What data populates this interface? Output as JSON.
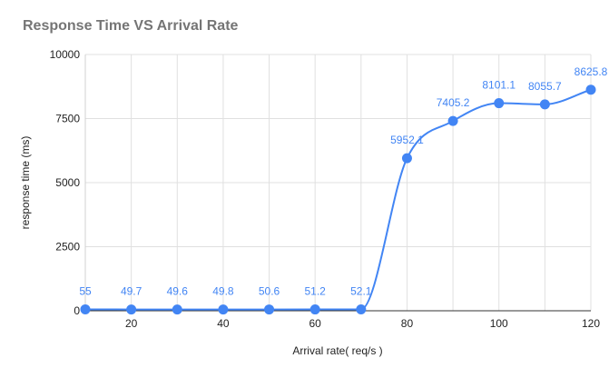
{
  "chart_data": {
    "type": "line",
    "title": "Response Time VS Arrival Rate",
    "xlabel": "Arrival rate( req/s )",
    "ylabel": "response time (ms)",
    "x": [
      10,
      20,
      30,
      40,
      50,
      60,
      70,
      80,
      90,
      100,
      110,
      120
    ],
    "series": [
      {
        "values": [
          55,
          49.7,
          49.6,
          49.8,
          50.6,
          51.2,
          52.1,
          5952.1,
          7405.2,
          8101.1,
          8055.7,
          8625.8
        ],
        "data_labels": [
          "55",
          "49.7",
          "49.6",
          "49.8",
          "50.6",
          "51.2",
          "52.1",
          "5952.1",
          "7405.2",
          "8101.1",
          "8055.7",
          "8625.8"
        ],
        "color": "#4285f4"
      }
    ],
    "xlim": [
      10,
      120
    ],
    "ylim": [
      0,
      10000
    ],
    "x_ticks": [
      "20",
      "40",
      "60",
      "80",
      "100",
      "120"
    ],
    "y_ticks": [
      "0",
      "2500",
      "5000",
      "7500",
      "10000"
    ],
    "grid": true,
    "smooth": true,
    "legend": "none"
  }
}
